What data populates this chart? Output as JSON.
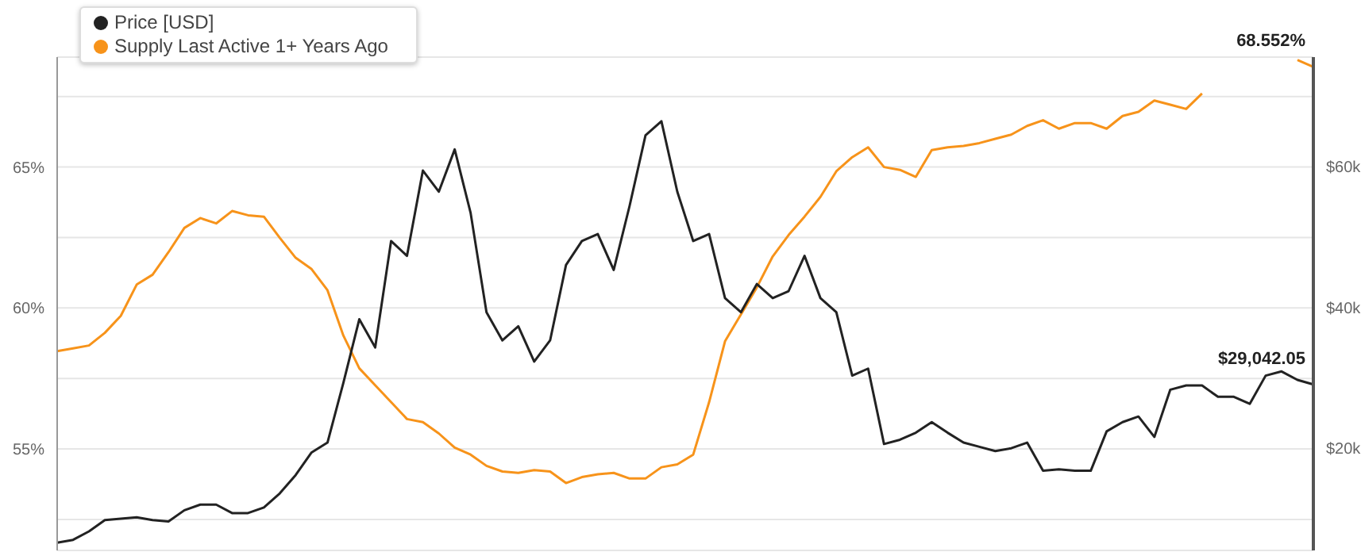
{
  "chart_data": {
    "type": "line",
    "categories": [
      null,
      null,
      null,
      null,
      null,
      null,
      null,
      null,
      null,
      null,
      null,
      null,
      null,
      null,
      null,
      null,
      null,
      null,
      null,
      null,
      null,
      null,
      null,
      null,
      null,
      null,
      null,
      null,
      null,
      null,
      null,
      null,
      null,
      null,
      null,
      null,
      null,
      null,
      null,
      null,
      null,
      null,
      null,
      null,
      null,
      null,
      null,
      null,
      null,
      null,
      null,
      null,
      null,
      null,
      null,
      null,
      null,
      null,
      null,
      null,
      null,
      null,
      null,
      null,
      null,
      null,
      null,
      null,
      null,
      null,
      null,
      null,
      null,
      null,
      null,
      null,
      null,
      null,
      null,
      null
    ],
    "series": [
      {
        "name": "Supply Last Active 1+ Years Ago",
        "color": "#f7931a",
        "values": [
          58.47,
          58.57,
          58.67,
          59.12,
          59.72,
          60.83,
          61.18,
          61.98,
          62.84,
          63.19,
          63.0,
          63.44,
          63.29,
          63.24,
          62.49,
          61.78,
          61.38,
          60.63,
          59.02,
          57.86,
          57.26,
          56.66,
          56.06,
          55.95,
          55.55,
          55.05,
          54.8,
          54.4,
          54.2,
          54.15,
          54.25,
          54.2,
          53.79,
          54.0,
          54.1,
          54.15,
          53.95,
          53.95,
          54.35,
          54.45,
          54.8,
          56.66,
          58.82,
          59.77,
          60.73,
          61.83,
          62.59,
          63.24,
          63.94,
          64.85,
          65.35,
          65.7,
          65.0,
          64.9,
          64.65,
          65.6,
          65.7,
          65.75,
          65.85,
          66.0,
          66.15,
          66.46,
          66.66,
          66.36,
          66.56,
          66.56,
          66.36,
          66.81,
          66.96,
          67.36,
          67.21,
          67.06,
          67.61,
          null,
          null,
          null,
          null,
          null,
          68.8,
          68.552
        ],
        "value_labels": [
          null,
          null,
          null,
          null,
          null,
          null,
          null,
          null,
          null,
          null,
          null,
          null,
          null,
          null,
          null,
          null,
          null,
          null,
          null,
          null,
          null,
          null,
          null,
          null,
          null,
          null,
          null,
          null,
          null,
          null,
          null,
          null,
          null,
          null,
          null,
          null,
          null,
          null,
          null,
          null,
          null,
          null,
          null,
          null,
          null,
          null,
          null,
          null,
          null,
          null,
          null,
          null,
          null,
          null,
          null,
          null,
          null,
          null,
          null,
          null,
          null,
          null,
          null,
          null,
          null,
          null,
          null,
          null,
          null,
          null,
          null,
          null,
          null,
          null,
          null,
          null,
          null,
          null,
          null,
          "68.552%"
        ]
      },
      {
        "name": "Price [USD]",
        "color": "#222222",
        "axis": "y2",
        "values": [
          6600,
          7000,
          8200,
          9800,
          10000,
          10200,
          9800,
          9600,
          11200,
          12000,
          12000,
          10800,
          10800,
          11600,
          13600,
          16200,
          19400,
          20800,
          29300,
          38300,
          34300,
          49400,
          47300,
          59400,
          56400,
          62400,
          53400,
          39300,
          35300,
          37300,
          32300,
          35300,
          46000,
          49400,
          50400,
          45300,
          54400,
          64400,
          66400,
          56400,
          49400,
          50400,
          41300,
          39300,
          43300,
          41300,
          42300,
          47300,
          41300,
          39300,
          30300,
          31300,
          20600,
          21200,
          22200,
          23700,
          22200,
          20800,
          20200,
          19600,
          20000,
          20800,
          16800,
          17000,
          16800,
          16800,
          22400,
          23700,
          24500,
          21600,
          28300,
          28900,
          28900,
          27300,
          27300,
          26300,
          30300,
          30900,
          29700,
          29042.05
        ],
        "value_labels": [
          null,
          null,
          null,
          null,
          null,
          null,
          null,
          null,
          null,
          null,
          null,
          null,
          null,
          null,
          null,
          null,
          null,
          null,
          null,
          null,
          null,
          null,
          null,
          null,
          null,
          null,
          null,
          null,
          null,
          null,
          null,
          null,
          null,
          null,
          null,
          null,
          null,
          null,
          null,
          null,
          null,
          null,
          null,
          null,
          null,
          null,
          null,
          null,
          null,
          null,
          null,
          null,
          null,
          null,
          null,
          null,
          null,
          null,
          null,
          null,
          null,
          null,
          null,
          null,
          null,
          null,
          null,
          null,
          null,
          null,
          null,
          null,
          null,
          null,
          null,
          null,
          null,
          null,
          null,
          "$29,042.05"
        ]
      }
    ],
    "ylim": [
      51.4,
      68.9
    ],
    "yticks": [
      {
        "value": 52.5,
        "label": null
      },
      {
        "value": 55,
        "label": "55%"
      },
      {
        "value": 57.5,
        "label": null
      },
      {
        "value": 60,
        "label": "60%"
      },
      {
        "value": 62.5,
        "label": null
      },
      {
        "value": 65,
        "label": "65%"
      },
      {
        "value": 67.5,
        "label": null
      }
    ],
    "y2lim": [
      5500,
      75500
    ],
    "y2ticks": [
      {
        "value": 10000,
        "label": null
      },
      {
        "value": 20000,
        "label": "$20k"
      },
      {
        "value": 30000,
        "label": null
      },
      {
        "value": 40000,
        "label": "$40k"
      },
      {
        "value": 50000,
        "label": null
      },
      {
        "value": 60000,
        "label": "$60k"
      },
      {
        "value": 70000,
        "label": null
      }
    ],
    "grid": "y",
    "legend": "top left",
    "tick_labels": "y",
    "marker": "none",
    "line_style": "solid"
  }
}
